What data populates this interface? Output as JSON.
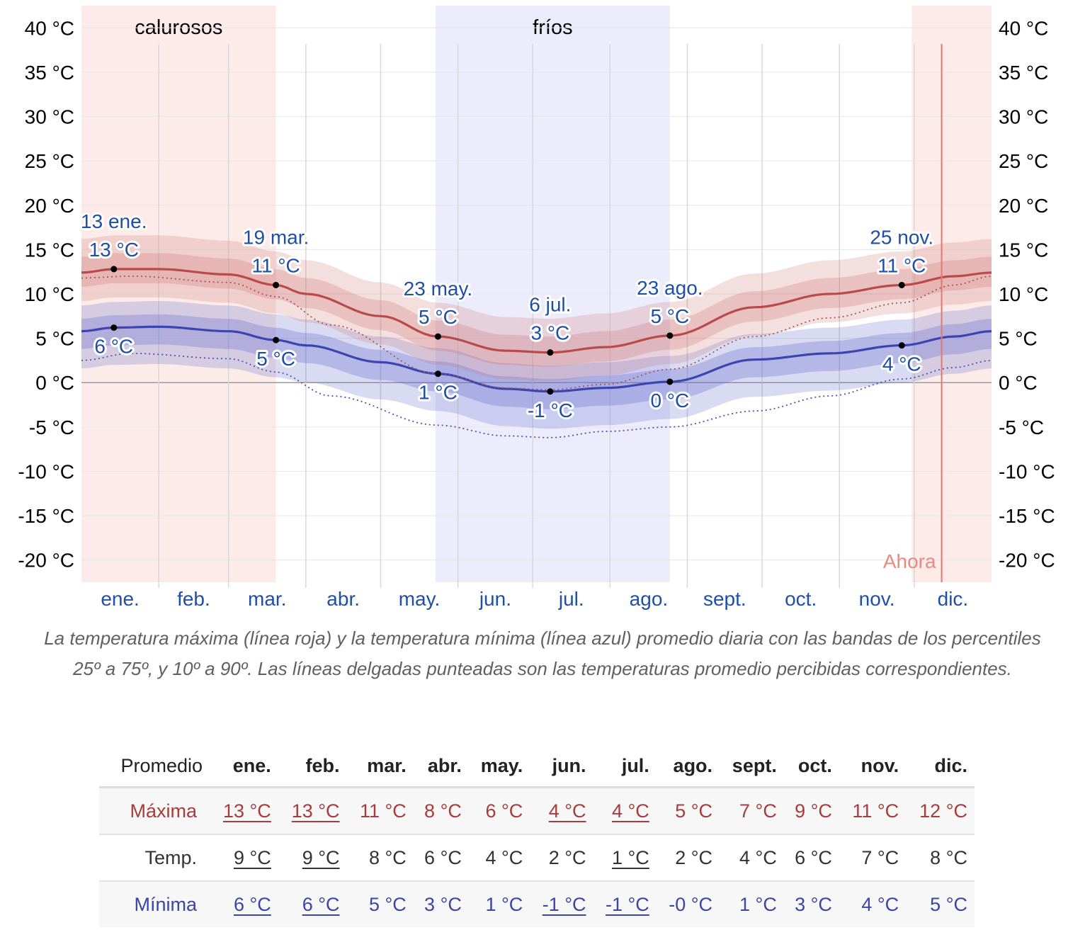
{
  "chart_data": {
    "type": "line",
    "y_ticks": [
      "40 °C",
      "35 °C",
      "30 °C",
      "25 °C",
      "20 °C",
      "15 °C",
      "10 °C",
      "5 °C",
      "0 °C",
      "-5 °C",
      "-10 °C",
      "-15 °C",
      "-20 °C"
    ],
    "y_tick_values": [
      40,
      35,
      30,
      25,
      20,
      15,
      10,
      5,
      0,
      -5,
      -10,
      -15,
      -20
    ],
    "ylim": [
      -22.5,
      42.5
    ],
    "months": [
      "ene.",
      "feb.",
      "mar.",
      "abr.",
      "may.",
      "jun.",
      "jul.",
      "ago.",
      "sept.",
      "oct.",
      "nov.",
      "dic."
    ],
    "seasons": [
      {
        "label": "calurosos",
        "start_day": 0,
        "end_day": 78,
        "color": "#fcebe8"
      },
      {
        "label": "fríos",
        "start_day": 142,
        "end_day": 236,
        "color": "#ececfc"
      },
      {
        "label": "",
        "start_day": 333,
        "end_day": 365,
        "color": "#fcebe8"
      }
    ],
    "now_day": 345,
    "now_label": "Ahora",
    "series": [
      {
        "name": "Máxima",
        "color": "#b84a4a",
        "days": [
          0,
          13,
          31,
          59,
          78,
          90,
          120,
          143,
          170,
          188,
          210,
          236,
          270,
          300,
          329,
          350,
          365
        ],
        "values": [
          12.4,
          12.8,
          12.8,
          12.2,
          11.0,
          10.0,
          7.5,
          5.2,
          3.6,
          3.4,
          4.0,
          5.3,
          8.5,
          10.0,
          11.0,
          12.0,
          12.4
        ]
      },
      {
        "name": "Mínima",
        "color": "#3b44b0",
        "days": [
          0,
          13,
          31,
          59,
          78,
          90,
          120,
          143,
          170,
          188,
          210,
          236,
          270,
          300,
          329,
          350,
          365
        ],
        "values": [
          5.8,
          6.2,
          6.3,
          5.8,
          4.8,
          4.2,
          2.3,
          1.0,
          -0.7,
          -1.0,
          -0.6,
          0.1,
          2.6,
          3.3,
          4.2,
          5.2,
          5.8
        ]
      },
      {
        "name": "Máxima percibida",
        "color": "#a85555",
        "dotted": true,
        "days": [
          0,
          20,
          59,
          78,
          100,
          143,
          170,
          188,
          210,
          236,
          270,
          300,
          329,
          350,
          365
        ],
        "values": [
          11.8,
          12.0,
          11.3,
          9.7,
          6.5,
          1.0,
          -0.6,
          -0.8,
          -0.2,
          1.5,
          5.2,
          7.3,
          9.0,
          11.0,
          12.0
        ]
      },
      {
        "name": "Mínima percibida",
        "color": "#4a53b0",
        "dotted": true,
        "days": [
          0,
          20,
          59,
          78,
          100,
          143,
          170,
          188,
          210,
          236,
          270,
          300,
          329,
          350,
          365
        ],
        "values": [
          2.5,
          3.3,
          2.7,
          1.2,
          -1.5,
          -4.8,
          -6.0,
          -6.2,
          -5.5,
          -5.0,
          -3.2,
          -1.5,
          0.4,
          1.7,
          2.5
        ]
      }
    ],
    "annotations": [
      {
        "day": 13,
        "value": 12.8,
        "label_top": "13 ene.",
        "label": "13 °C",
        "pos": "above",
        "color": "#b84a4a"
      },
      {
        "day": 78,
        "value": 11.0,
        "label_top": "19 mar.",
        "label": "11 °C",
        "pos": "above",
        "color": "#b84a4a"
      },
      {
        "day": 143,
        "value": 5.2,
        "label_top": "23 may.",
        "label": "5 °C",
        "pos": "above",
        "color": "#b84a4a"
      },
      {
        "day": 188,
        "value": 3.4,
        "label_top": "6 jul.",
        "label": "3 °C",
        "pos": "above",
        "color": "#b84a4a"
      },
      {
        "day": 236,
        "value": 5.3,
        "label_top": "23 ago.",
        "label": "5 °C",
        "pos": "above",
        "color": "#b84a4a"
      },
      {
        "day": 329,
        "value": 11.0,
        "label_top": "25 nov.",
        "label": "11 °C",
        "pos": "above",
        "color": "#b84a4a"
      },
      {
        "day": 13,
        "value": 6.2,
        "label": "6 °C",
        "pos": "below",
        "color": "#3b44b0"
      },
      {
        "day": 78,
        "value": 4.8,
        "label": "5 °C",
        "pos": "below",
        "color": "#3b44b0"
      },
      {
        "day": 143,
        "value": 1.0,
        "label": "1 °C",
        "pos": "below",
        "color": "#3b44b0"
      },
      {
        "day": 188,
        "value": -1.0,
        "label": "-1 °C",
        "pos": "below",
        "color": "#3b44b0"
      },
      {
        "day": 236,
        "value": 0.1,
        "label": "0 °C",
        "pos": "below",
        "color": "#3b44b0"
      },
      {
        "day": 329,
        "value": 4.2,
        "label": "4 °C",
        "pos": "below",
        "color": "#3b44b0"
      }
    ]
  },
  "caption": "La temperatura máxima (línea roja) y la temperatura mínima (línea azul) promedio diaria con las bandas de los percentiles 25º a 75º, y 10º a 90º. Las líneas delgadas punteadas son las temperaturas promedio percibidas correspondientes.",
  "table": {
    "header_label": "Promedio",
    "months": [
      "ene.",
      "feb.",
      "mar.",
      "abr.",
      "may.",
      "jun.",
      "jul.",
      "ago.",
      "sept.",
      "oct.",
      "nov.",
      "dic."
    ],
    "rows": [
      {
        "label": "Máxima",
        "cls": "row-max",
        "values": [
          "13 °C",
          "13 °C",
          "11 °C",
          "8 °C",
          "6 °C",
          "4 °C",
          "4 °C",
          "5 °C",
          "7 °C",
          "9 °C",
          "11 °C",
          "12 °C"
        ],
        "highlight": [
          0,
          1,
          5,
          6
        ]
      },
      {
        "label": "Temp.",
        "cls": "row-avg",
        "values": [
          "9 °C",
          "9 °C",
          "8 °C",
          "6 °C",
          "4 °C",
          "2 °C",
          "1 °C",
          "2 °C",
          "4 °C",
          "6 °C",
          "7 °C",
          "8 °C"
        ],
        "highlight": [
          0,
          1,
          6
        ]
      },
      {
        "label": "Mínima",
        "cls": "row-min",
        "values": [
          "6 °C",
          "6 °C",
          "5 °C",
          "3 °C",
          "1 °C",
          "-1 °C",
          "-1 °C",
          "-0 °C",
          "1 °C",
          "3 °C",
          "4 °C",
          "5 °C"
        ],
        "highlight": [
          0,
          1,
          5,
          6
        ]
      }
    ]
  }
}
